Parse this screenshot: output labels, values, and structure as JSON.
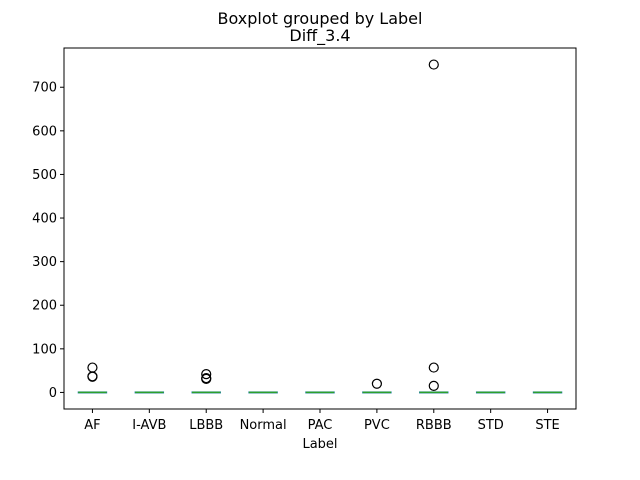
{
  "chart_data": {
    "type": "box",
    "suptitle": "Boxplot grouped by Label",
    "title": "Diff_3.4",
    "xlabel": "Label",
    "ylabel": "",
    "ylim": [
      -38,
      790
    ],
    "yticks": [
      0,
      100,
      200,
      300,
      400,
      500,
      600,
      700
    ],
    "grid": false,
    "categories": [
      "AF",
      "I-AVB",
      "LBBB",
      "Normal",
      "PAC",
      "PVC",
      "RBBB",
      "STD",
      "STE"
    ],
    "boxes": [
      {
        "label": "AF",
        "q1": 0,
        "median": 0,
        "q3": 0,
        "whisker_low": 0,
        "whisker_high": 0,
        "outliers": [
          57,
          37,
          36
        ]
      },
      {
        "label": "I-AVB",
        "q1": 0,
        "median": 0,
        "q3": 0,
        "whisker_low": 0,
        "whisker_high": 0,
        "outliers": []
      },
      {
        "label": "LBBB",
        "q1": 0,
        "median": 0,
        "q3": 0,
        "whisker_low": 0,
        "whisker_high": 0,
        "outliers": [
          42,
          33,
          31
        ]
      },
      {
        "label": "Normal",
        "q1": 0,
        "median": 0,
        "q3": 0,
        "whisker_low": 0,
        "whisker_high": 0,
        "outliers": []
      },
      {
        "label": "PAC",
        "q1": 0,
        "median": 0,
        "q3": 0,
        "whisker_low": 0,
        "whisker_high": 0,
        "outliers": []
      },
      {
        "label": "PVC",
        "q1": 0,
        "median": 0,
        "q3": 0,
        "whisker_low": 0,
        "whisker_high": 0,
        "outliers": [
          20
        ]
      },
      {
        "label": "RBBB",
        "q1": 0,
        "median": 0,
        "q3": 0,
        "whisker_low": 0,
        "whisker_high": 0,
        "outliers": [
          752,
          57,
          15
        ]
      },
      {
        "label": "STD",
        "q1": 0,
        "median": 0,
        "q3": 0,
        "whisker_low": 0,
        "whisker_high": 0,
        "outliers": []
      },
      {
        "label": "STE",
        "q1": 0,
        "median": 0,
        "q3": 0,
        "whisker_low": 0,
        "whisker_high": 0,
        "outliers": []
      }
    ],
    "colors": {
      "box": "#1f77b4",
      "median": "#2ca02c",
      "whisker": "#000000",
      "outlier_edge": "#000000"
    }
  }
}
